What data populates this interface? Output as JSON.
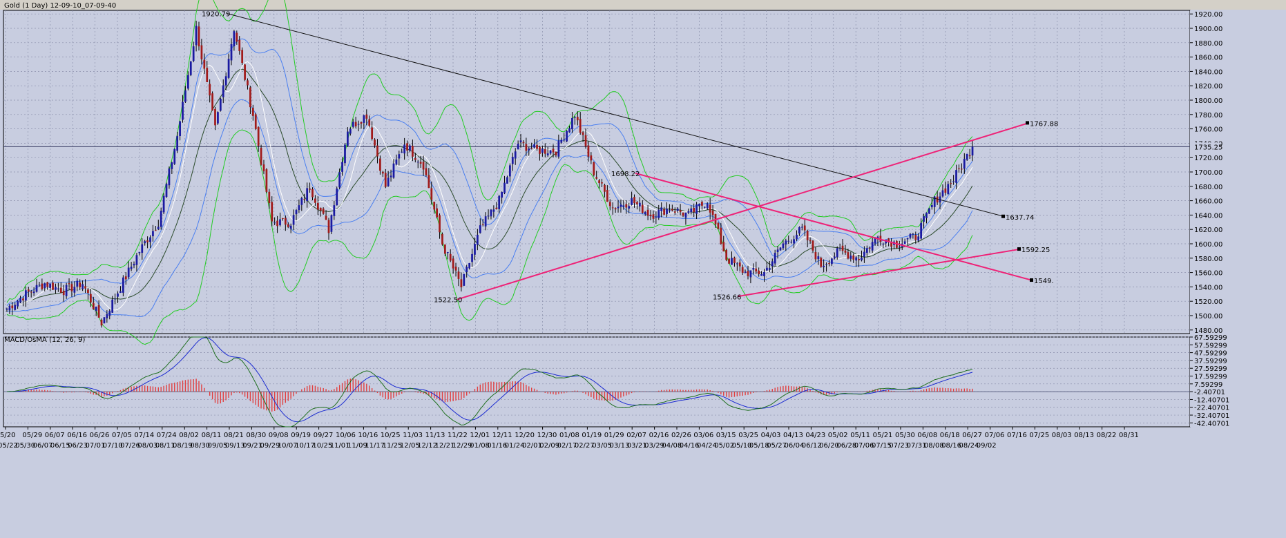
{
  "window_title": "Gold (1 Day)  12-09-10_07-09-40",
  "price_panel": {
    "current_price_label": "1735.25",
    "y_ticks": [
      "1920.00",
      "1900.00",
      "1880.00",
      "1860.00",
      "1840.00",
      "1820.00",
      "1800.00",
      "1780.00",
      "1760.00",
      "1740.00",
      "1720.00",
      "1700.00",
      "1680.00",
      "1660.00",
      "1640.00",
      "1620.00",
      "1600.00",
      "1580.00",
      "1560.00",
      "1540.00",
      "1520.00",
      "1500.00",
      "1480.00"
    ],
    "annotations": [
      {
        "text": "1920.79",
        "value": 1920.79
      },
      {
        "text": "1698.22",
        "value": 1698.22
      },
      {
        "text": "1522.50",
        "value": 1522.5
      },
      {
        "text": "1526.66",
        "value": 1526.66
      },
      {
        "text": "1767.88",
        "value": 1767.88
      },
      {
        "text": "1637.74",
        "value": 1637.74
      },
      {
        "text": "1592.25",
        "value": 1592.25
      },
      {
        "text": "1549.",
        "value": 1549
      }
    ]
  },
  "macd_panel": {
    "title": "MACD/OsMA (12, 26, 9)",
    "y_ticks": [
      "67.59299",
      "57.59299",
      "47.59299",
      "37.59299",
      "27.59299",
      "17.59299",
      "7.59299",
      "-2.40701",
      "-12.40701",
      "-22.40701",
      "-32.40701",
      "-42.40701"
    ]
  },
  "x_axis": {
    "row1": [
      "5/20",
      "05/29",
      "06/07",
      "06/16",
      "06/26",
      "07/05",
      "07/14",
      "07/24",
      "08/02",
      "08/11",
      "08/21",
      "08/30",
      "09/08",
      "09/19",
      "09/27",
      "10/06",
      "10/16",
      "10/25",
      "11/03",
      "11/13",
      "11/22",
      "12/01",
      "12/11",
      "12/20",
      "12/30",
      "01/08",
      "01/19",
      "01/29",
      "02/07",
      "02/16",
      "02/26",
      "03/06",
      "03/15",
      "03/25",
      "04/03",
      "04/13",
      "04/23",
      "05/02",
      "05/11",
      "05/21",
      "05/30",
      "06/08",
      "06/18",
      "06/27",
      "07/06",
      "07/16",
      "07/25",
      "08/03",
      "08/13",
      "08/22",
      "08/31"
    ],
    "row2": [
      "05/22",
      "05/30",
      "06/07",
      "06/15",
      "06/23",
      "07/01",
      "07/10",
      "07/26",
      "08/03",
      "08/11",
      "08/19",
      "08/30",
      "09/05",
      "09/13",
      "09/21",
      "09/29",
      "10/07",
      "10/17",
      "10/25",
      "11/01",
      "11/09",
      "11/17",
      "11/25",
      "12/05",
      "12/12",
      "12/21",
      "12/29",
      "01/08",
      "01/16",
      "01/24",
      "02/01",
      "02/09",
      "02/17",
      "02/27",
      "03/05",
      "03/13",
      "03/21",
      "03/29",
      "04/08",
      "04/16",
      "04/24",
      "05/02",
      "05/10",
      "05/18",
      "05/27",
      "06/04",
      "06/12",
      "06/20",
      "06/28",
      "07/06",
      "07/15",
      "07/23",
      "07/31",
      "08/08",
      "08/16",
      "08/24",
      "09/02"
    ]
  },
  "colors": {
    "background": "#c8cde0",
    "grid": "#8a8faa",
    "bull_candle": "#1a1aa0",
    "bear_candle": "#a01a1a",
    "bollinger_outer": "#22cc22",
    "bollinger_inner": "#4a7ff0",
    "ma_white": "#ffffff",
    "ma_dark": "#2a4a2a",
    "trend_line_pink": "#ee2277",
    "trend_line_black": "#111111",
    "macd_hist": "#e04040",
    "macd_line": "#1a2ad0",
    "signal_line": "#1e6e1e"
  },
  "chart_data": [
    {
      "type": "candlestick",
      "title": "Gold (1 Day)",
      "ylim": [
        1475,
        1925
      ],
      "close_path": [
        {
          "x": "05/20",
          "close": 1510
        },
        {
          "x": "05/29",
          "close": 1530
        },
        {
          "x": "06/07",
          "close": 1545
        },
        {
          "x": "06/16",
          "close": 1535
        },
        {
          "x": "06/26",
          "close": 1545
        },
        {
          "x": "07/05",
          "close": 1490
        },
        {
          "x": "07/14",
          "close": 1540
        },
        {
          "x": "07/24",
          "close": 1590
        },
        {
          "x": "08/02",
          "close": 1630
        },
        {
          "x": "08/11",
          "close": 1750
        },
        {
          "x": "08/21",
          "close": 1900
        },
        {
          "x": "08/30",
          "close": 1760
        },
        {
          "x": "09/08",
          "close": 1900
        },
        {
          "x": "09/19",
          "close": 1780
        },
        {
          "x": "09/27",
          "close": 1630
        },
        {
          "x": "10/06",
          "close": 1630
        },
        {
          "x": "10/16",
          "close": 1680
        },
        {
          "x": "10/25",
          "close": 1620
        },
        {
          "x": "11/03",
          "close": 1760
        },
        {
          "x": "11/13",
          "close": 1780
        },
        {
          "x": "11/22",
          "close": 1680
        },
        {
          "x": "12/01",
          "close": 1740
        },
        {
          "x": "12/11",
          "close": 1710
        },
        {
          "x": "12/20",
          "close": 1600
        },
        {
          "x": "12/30",
          "close": 1540
        },
        {
          "x": "01/08",
          "close": 1620
        },
        {
          "x": "01/19",
          "close": 1660
        },
        {
          "x": "01/29",
          "close": 1740
        },
        {
          "x": "02/07",
          "close": 1730
        },
        {
          "x": "02/16",
          "close": 1730
        },
        {
          "x": "02/26",
          "close": 1780
        },
        {
          "x": "03/06",
          "close": 1700
        },
        {
          "x": "03/15",
          "close": 1650
        },
        {
          "x": "03/25",
          "close": 1660
        },
        {
          "x": "04/03",
          "close": 1640
        },
        {
          "x": "04/13",
          "close": 1650
        },
        {
          "x": "04/23",
          "close": 1640
        },
        {
          "x": "05/02",
          "close": 1660
        },
        {
          "x": "05/11",
          "close": 1580
        },
        {
          "x": "05/21",
          "close": 1560
        },
        {
          "x": "05/30",
          "close": 1560
        },
        {
          "x": "06/08",
          "close": 1600
        },
        {
          "x": "06/18",
          "close": 1620
        },
        {
          "x": "06/27",
          "close": 1570
        },
        {
          "x": "07/06",
          "close": 1590
        },
        {
          "x": "07/16",
          "close": 1580
        },
        {
          "x": "07/25",
          "close": 1610
        },
        {
          "x": "08/03",
          "close": 1600
        },
        {
          "x": "08/13",
          "close": 1610
        },
        {
          "x": "08/22",
          "close": 1660
        },
        {
          "x": "08/31",
          "close": 1690
        },
        {
          "x": "09/07",
          "close": 1735.25
        }
      ],
      "trend_lines": [
        {
          "from": [
            0.0,
            1920.79
          ],
          "to": [
            1.0,
            1637.74
          ],
          "color": "black"
        },
        {
          "from": [
            0.0,
            1698.22
          ],
          "to": [
            1.0,
            1549
          ],
          "color": "pink"
        },
        {
          "from": [
            0.0,
            1522.5
          ],
          "to": [
            1.0,
            1767.88
          ],
          "color": "pink"
        },
        {
          "from": [
            0.0,
            1526.66
          ],
          "to": [
            1.0,
            1592.25
          ],
          "color": "pink"
        }
      ],
      "horizontal_line": 1735.25
    },
    {
      "type": "macd",
      "title": "MACD/OsMA (12, 26, 9)",
      "ylim": [
        -47.4,
        67.59
      ]
    }
  ]
}
